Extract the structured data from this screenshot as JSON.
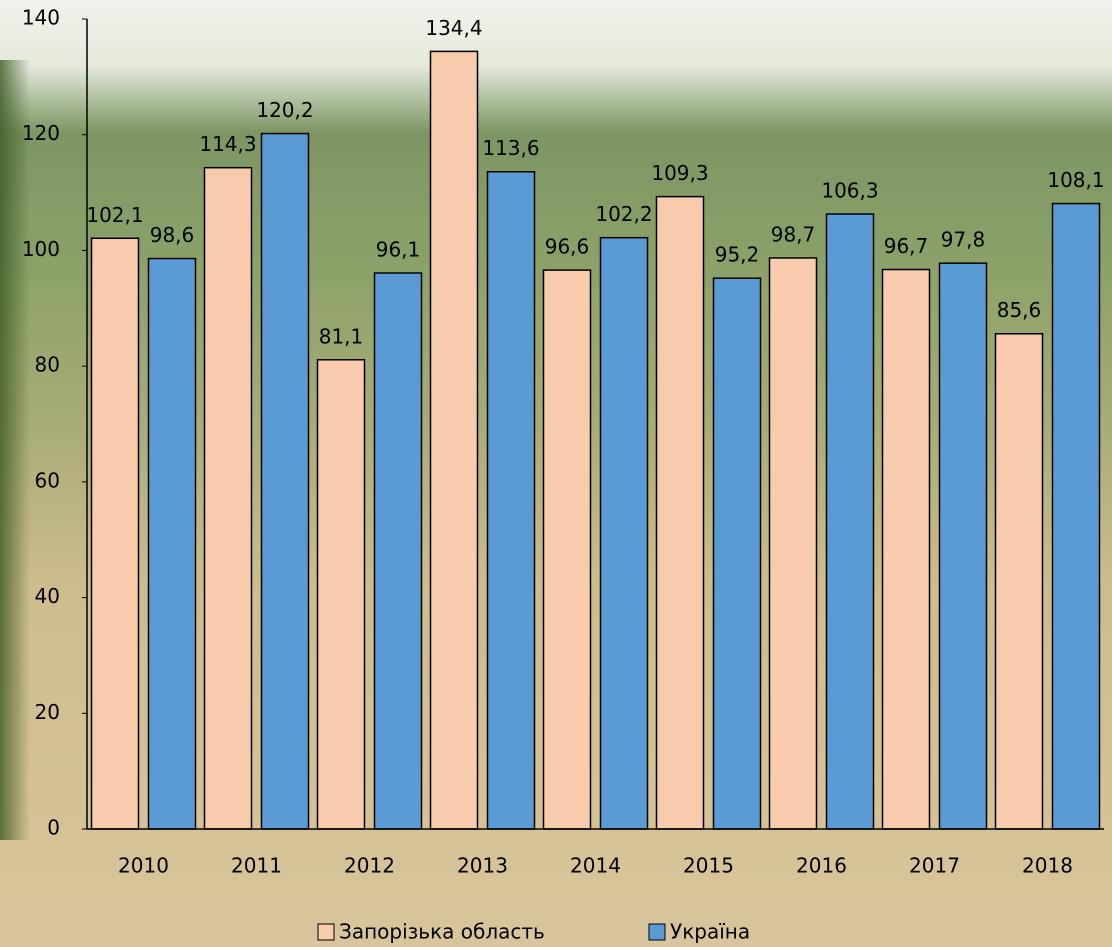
{
  "chart_data": {
    "type": "bar",
    "categories": [
      "2010",
      "2011",
      "2012",
      "2013",
      "2014",
      "2015",
      "2016",
      "2017",
      "2018"
    ],
    "series": [
      {
        "name": "Запорізька область",
        "color": "#f8cbad",
        "values": [
          102.1,
          114.3,
          81.1,
          134.4,
          96.6,
          109.3,
          98.7,
          96.7,
          85.6
        ],
        "value_labels": [
          "102,1",
          "114,3",
          "81,1",
          "134,4",
          "96,6",
          "109,3",
          "98,7",
          "96,7",
          "85,6"
        ]
      },
      {
        "name": "Україна",
        "color": "#5b9bd5",
        "values": [
          98.6,
          120.2,
          96.1,
          113.6,
          102.2,
          95.2,
          106.3,
          97.8,
          108.1
        ],
        "value_labels": [
          "98,6",
          "120,2",
          "96,1",
          "113,6",
          "102,2",
          "95,2",
          "106,3",
          "97,8",
          "108,1"
        ]
      }
    ],
    "ylim": [
      0,
      140
    ],
    "yticks": [
      0,
      20,
      40,
      60,
      80,
      100,
      120,
      140
    ],
    "legend": "bottom"
  }
}
